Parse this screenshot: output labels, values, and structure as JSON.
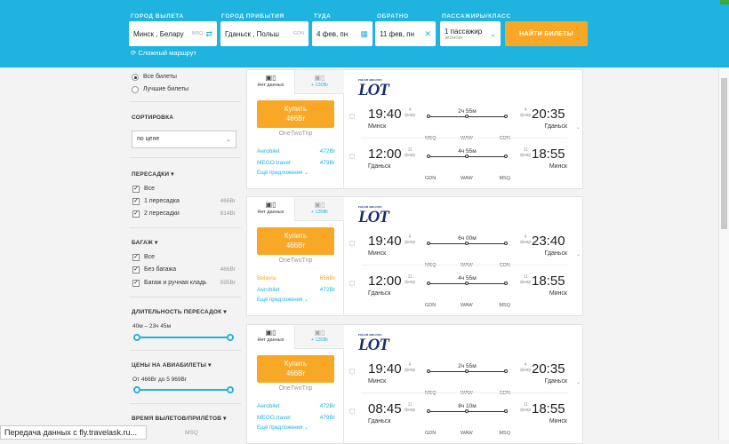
{
  "search": {
    "from_label": "ГОРОД ВЫЛЕТА",
    "from_value": "Минск , Белару",
    "from_code": "MSQ",
    "to_label": "ГОРОД ПРИБЫТИЯ",
    "to_value": "Гданьск , Польш",
    "to_code": "GDN",
    "depart_label": "ТУДА",
    "depart_value": "4 фев, пн",
    "return_label": "ОБРАТНО",
    "return_value": "11 фев, пн",
    "pax_label": "ПАССАЖИРЫ/КЛАСС",
    "pax_value": "1 пассажир",
    "pax_class": "эконом",
    "find_button": "НАЙТИ БИЛЕТЫ",
    "complex_route": "Сложный маршрут"
  },
  "sidebar": {
    "radio_all": "Все билеты",
    "radio_best": "Лучшие билеты",
    "sort_title": "СОРТИРОВКА",
    "sort_value": "по цене",
    "stops_title": "ПЕРЕСАДКИ",
    "stops": [
      {
        "label": "Все",
        "count": ""
      },
      {
        "label": "1 пересадка",
        "count": "466Br"
      },
      {
        "label": "2 пересадки",
        "count": "814Br"
      }
    ],
    "baggage_title": "БАГАЖ",
    "baggage": [
      {
        "label": "Все",
        "count": ""
      },
      {
        "label": "Без багажа",
        "count": "466Br"
      },
      {
        "label": "Багаж и ручная кладь",
        "count": "595Br"
      }
    ],
    "layover_title": "ДЛИТЕЛЬНОСТЬ ПЕРЕСАДОК",
    "layover_range": "40м – 23ч 45м",
    "price_title": "ЦЕНЫ НА АВИАБИЛЕТЫ",
    "price_range": "От 466Br до 5 969Br",
    "times_title": "ВРЕМЯ ВЫЛЕТОВ/ПРИЛЁТОВ",
    "times_sub": "MSQ"
  },
  "cards": [
    {
      "tab1": "Нет данных",
      "tab2": "+ 130Br",
      "buy": "Купить",
      "price": "466Br",
      "site": "OneTwoTrip",
      "agents": [
        {
          "name": "Aerobilet",
          "price": "472Br",
          "color": "#1fb4e0"
        },
        {
          "name": "MEGO.travel",
          "price": "479Br",
          "color": "#1fb4e0"
        }
      ],
      "more": "Ещё предложения",
      "airline": "LOT",
      "out": {
        "dep": "19:40",
        "dep_day": "4",
        "dep_mon": "февр",
        "arr": "20:35",
        "arr_day": "4",
        "arr_mon": "февр",
        "from": "Минск",
        "to": "Гданьск",
        "dur": "2ч 55м",
        "a1": "MSQ",
        "a2": "WAW",
        "a3": "GDN"
      },
      "back": {
        "dep": "12:00",
        "dep_day": "11",
        "dep_mon": "февр",
        "arr": "18:55",
        "arr_day": "11",
        "arr_mon": "февр",
        "from": "Гданьск",
        "to": "Минск",
        "dur": "4ч 55м",
        "a1": "GDN",
        "a2": "WAW",
        "a3": "MSQ"
      }
    },
    {
      "tab1": "Нет данных",
      "tab2": "+ 130Br",
      "buy": "Купить",
      "price": "466Br",
      "site": "OneTwoTrip",
      "agents": [
        {
          "name": "Belavia",
          "price": "656Br",
          "color": "#f9a825"
        },
        {
          "name": "Aerobilet",
          "price": "472Br",
          "color": "#1fb4e0"
        }
      ],
      "more": "Ещё предложения",
      "airline": "LOT",
      "out": {
        "dep": "19:40",
        "dep_day": "4",
        "dep_mon": "февр",
        "arr": "23:40",
        "arr_day": "4",
        "arr_mon": "февр",
        "from": "Минск",
        "to": "Гданьск",
        "dur": "6ч 00м",
        "a1": "MSQ",
        "a2": "WAW",
        "a3": "GDN"
      },
      "back": {
        "dep": "12:00",
        "dep_day": "11",
        "dep_mon": "февр",
        "arr": "18:55",
        "arr_day": "11",
        "arr_mon": "февр",
        "from": "Гданьск",
        "to": "Минск",
        "dur": "4ч 55м",
        "a1": "GDN",
        "a2": "WAW",
        "a3": "MSQ"
      }
    },
    {
      "tab1": "Нет данных",
      "tab2": "+ 130Br",
      "buy": "Купить",
      "price": "466Br",
      "site": "OneTwoTrip",
      "agents": [
        {
          "name": "Aerobilet",
          "price": "472Br",
          "color": "#1fb4e0"
        },
        {
          "name": "MEGO.travel",
          "price": "479Br",
          "color": "#1fb4e0"
        }
      ],
      "more": "Ещё предложения",
      "airline": "LOT",
      "out": {
        "dep": "19:40",
        "dep_day": "4",
        "dep_mon": "февр",
        "arr": "20:35",
        "arr_day": "4",
        "arr_mon": "февр",
        "from": "Минск",
        "to": "Гданьск",
        "dur": "2ч 55м",
        "a1": "MSQ",
        "a2": "WAW",
        "a3": "GDN"
      },
      "back": {
        "dep": "08:45",
        "dep_day": "11",
        "dep_mon": "февр",
        "arr": "18:55",
        "arr_day": "11",
        "arr_mon": "февр",
        "from": "Гданьск",
        "to": "Минск",
        "dur": "8ч 10м",
        "a1": "GDN",
        "a2": "WAW",
        "a3": "MSQ"
      }
    }
  ],
  "status_bar": "Передача данных с fly.travelask.ru...",
  "colors": {
    "accent": "#1fb4e0",
    "buy": "#f9a825",
    "logo": "#1a2d6e"
  }
}
